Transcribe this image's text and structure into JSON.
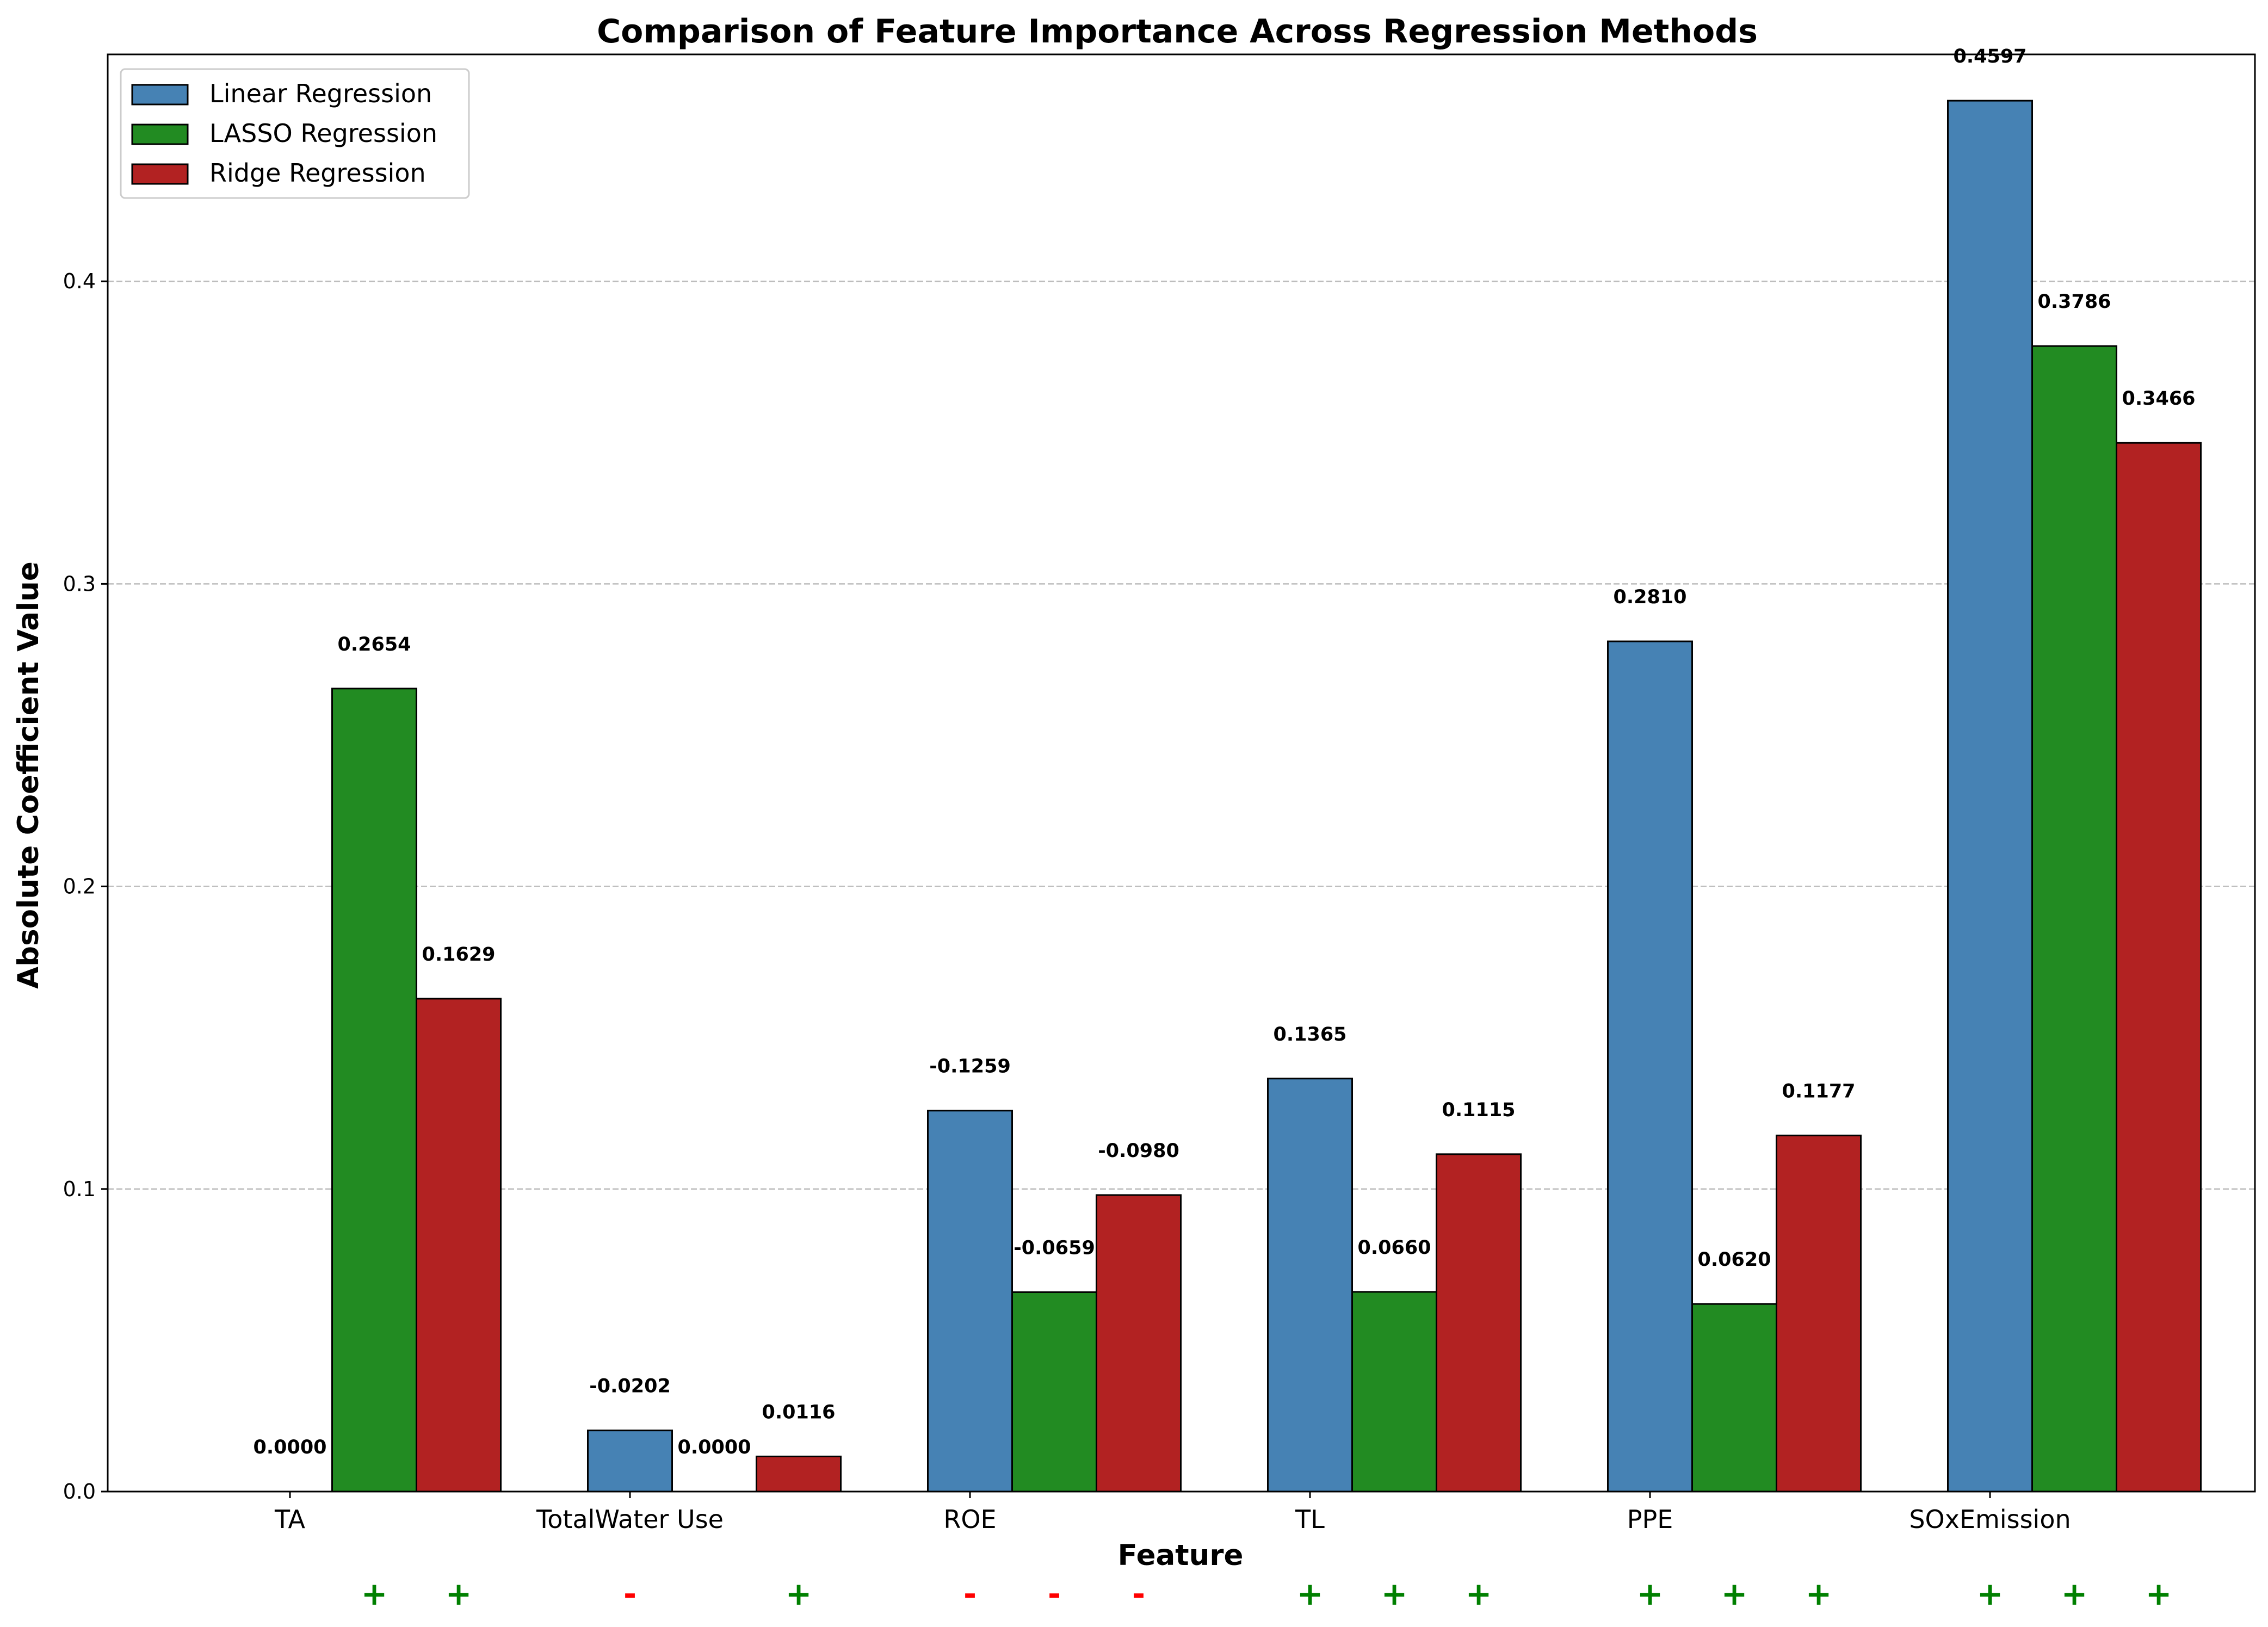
{
  "chart_data": {
    "type": "bar",
    "title": "Comparison of Feature Importance Across Regression Methods",
    "xlabel": "Feature",
    "ylabel": "Absolute Coefficient Value",
    "ylim": [
      0,
      0.475
    ],
    "yticks": [
      "0.0",
      "0.1",
      "0.2",
      "0.3",
      "0.4"
    ],
    "grid": "y-dashed",
    "legend_position": "top-left",
    "categories": [
      "TA",
      "TotalWater Use",
      "ROE",
      "TL",
      "PPE",
      "SOxEmission"
    ],
    "series": [
      {
        "name": "Linear Regression",
        "color": "#4682B4",
        "values": [
          0.0,
          0.0202,
          0.1259,
          0.1365,
          0.281,
          0.4597
        ],
        "labels": [
          "0.0000",
          "-0.0202",
          "-0.1259",
          "0.1365",
          "0.2810",
          "0.4597"
        ],
        "signs": [
          "",
          "-",
          "-",
          "+",
          "+",
          "+"
        ]
      },
      {
        "name": "LASSO Regression",
        "color": "#228B22",
        "values": [
          0.2654,
          0.0,
          0.0659,
          0.066,
          0.062,
          0.3786
        ],
        "labels": [
          "0.2654",
          "0.0000",
          "-0.0659",
          "0.0660",
          "0.0620",
          "0.3786"
        ],
        "signs": [
          "+",
          "",
          "-",
          "+",
          "+",
          "+"
        ]
      },
      {
        "name": "Ridge Regression",
        "color": "#B22222",
        "values": [
          0.1629,
          0.0116,
          0.098,
          0.1115,
          0.1177,
          0.3466
        ],
        "labels": [
          "0.1629",
          "0.0116",
          "-0.0980",
          "0.1115",
          "0.1177",
          "0.3466"
        ],
        "signs": [
          "+",
          "+",
          "-",
          "+",
          "+",
          "+"
        ]
      }
    ],
    "sign_colors": {
      "+": "#008000",
      "-": "#FF0000"
    }
  }
}
